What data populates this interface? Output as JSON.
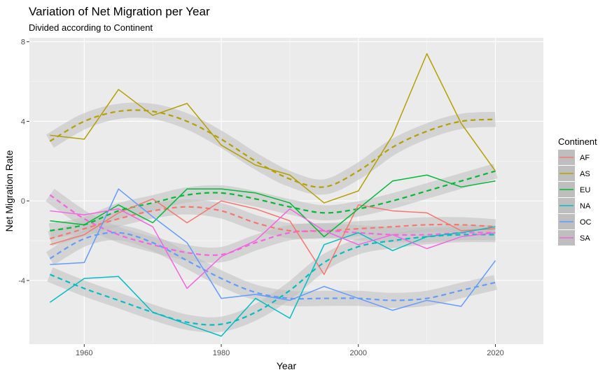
{
  "chart_data": {
    "type": "line",
    "title": "Variation of Net Migration per Year",
    "subtitle": "Divided according to Continent",
    "xlabel": "Year",
    "ylabel": "Net Migration Rate",
    "xlim": [
      1952,
      2027
    ],
    "ylim": [
      -7.2,
      8.2
    ],
    "x_ticks": [
      1960,
      1980,
      2000,
      2020
    ],
    "y_ticks": [
      -4,
      0,
      4,
      8
    ],
    "grid": true,
    "legend": {
      "title": "Continent",
      "position": "right"
    },
    "x": [
      1955,
      1960,
      1965,
      1970,
      1975,
      1980,
      1985,
      1990,
      1995,
      2000,
      2005,
      2010,
      2015,
      2020
    ],
    "series": [
      {
        "name": "AF",
        "color": "#F8766D",
        "values": [
          -2.2,
          -1.7,
          -0.6,
          0.1,
          -1.1,
          0.0,
          -0.4,
          -1.0,
          -3.7,
          -0.2,
          -0.5,
          -0.6,
          -1.5,
          -1.4
        ],
        "smooth": [
          -1.9,
          -1.4,
          -0.9,
          -0.5,
          -0.3,
          -0.5,
          -1.1,
          -1.5,
          -1.5,
          -1.4,
          -1.3,
          -1.2,
          -1.2,
          -1.3
        ]
      },
      {
        "name": "AS",
        "color": "#B79F00",
        "values": [
          3.3,
          3.1,
          5.6,
          4.3,
          4.9,
          2.8,
          1.8,
          1.3,
          -0.1,
          0.5,
          3.3,
          7.4,
          3.9,
          1.5
        ],
        "smooth": [
          3.0,
          4.0,
          4.5,
          4.5,
          4.0,
          3.1,
          2.0,
          1.1,
          0.7,
          1.5,
          2.7,
          3.5,
          4.0,
          4.1
        ]
      },
      {
        "name": "EU",
        "color": "#00BA38",
        "values": [
          -1.0,
          -1.2,
          -0.2,
          -1.1,
          0.6,
          0.6,
          0.4,
          -0.1,
          -1.8,
          -0.4,
          1.0,
          1.3,
          0.7,
          1.0
        ],
        "smooth": [
          -1.5,
          -1.2,
          -0.5,
          -0.1,
          0.3,
          0.4,
          0.1,
          -0.3,
          -0.6,
          -0.4,
          0.0,
          0.5,
          1.0,
          1.5
        ]
      },
      {
        "name": "NA",
        "color": "#00BFC4",
        "values": [
          -5.1,
          -3.9,
          -3.8,
          -5.6,
          -6.2,
          -6.8,
          -4.9,
          -5.9,
          -2.2,
          -1.6,
          -2.5,
          -1.8,
          -1.6,
          -1.3
        ],
        "smooth": [
          -3.7,
          -4.4,
          -5.0,
          -5.6,
          -6.1,
          -6.2,
          -5.6,
          -4.5,
          -3.1,
          -2.3,
          -2.0,
          -1.8,
          -1.7,
          -1.7
        ]
      },
      {
        "name": "OC",
        "color": "#619CFF",
        "values": [
          -3.2,
          -3.1,
          0.6,
          -0.8,
          -2.1,
          -4.9,
          -4.7,
          -5.0,
          -4.3,
          -4.9,
          -5.5,
          -5.0,
          -5.3,
          -3.0
        ],
        "smooth": [
          -2.9,
          -1.9,
          -1.6,
          -2.1,
          -3.0,
          -3.9,
          -4.6,
          -4.9,
          -4.9,
          -4.9,
          -5.0,
          -4.9,
          -4.5,
          -4.1
        ]
      },
      {
        "name": "SA",
        "color": "#F564E3",
        "values": [
          -0.5,
          -0.7,
          -0.4,
          -1.3,
          -4.4,
          -2.8,
          -2.0,
          -0.4,
          -1.5,
          -2.2,
          -1.7,
          -2.4,
          -1.8,
          -1.6
        ],
        "smooth": [
          0.3,
          -0.9,
          -1.7,
          -2.2,
          -2.6,
          -2.7,
          -2.1,
          -1.6,
          -1.5,
          -1.6,
          -1.7,
          -1.7,
          -1.6,
          -1.6
        ]
      }
    ]
  }
}
